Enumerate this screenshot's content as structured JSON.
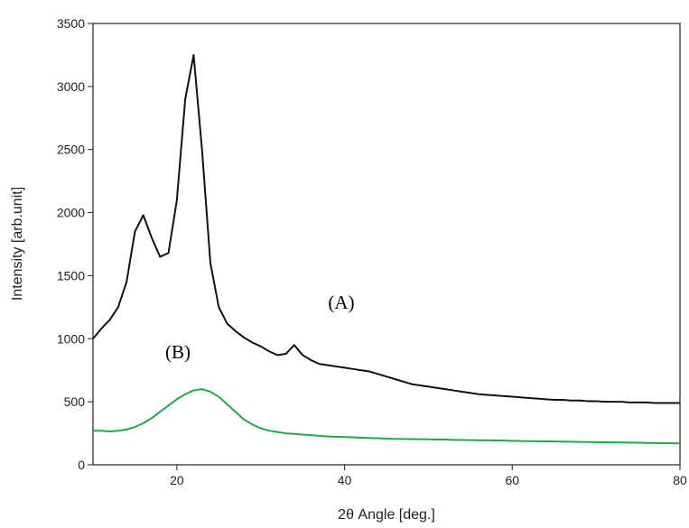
{
  "chart_data": {
    "type": "line",
    "x_label": "2θ Angle [deg.]",
    "y_label": "Intensity [arb.unit]",
    "x": [
      10,
      11,
      12,
      13,
      14,
      15,
      16,
      17,
      18,
      19,
      20,
      21,
      22,
      23,
      24,
      25,
      26,
      27,
      28,
      29,
      30,
      31,
      32,
      33,
      34,
      35,
      36,
      37,
      38,
      39,
      40,
      41,
      42,
      43,
      44,
      45,
      46,
      47,
      48,
      49,
      50,
      51,
      52,
      53,
      54,
      55,
      56,
      57,
      58,
      59,
      60,
      61,
      62,
      63,
      64,
      65,
      66,
      67,
      68,
      69,
      70,
      71,
      72,
      73,
      74,
      75,
      76,
      77,
      78,
      79,
      80
    ],
    "series": [
      {
        "name": "(A)",
        "color": "#111111",
        "values": [
          1000,
          1080,
          1150,
          1250,
          1450,
          1850,
          1980,
          1800,
          1650,
          1680,
          2100,
          2900,
          3250,
          2500,
          1600,
          1250,
          1120,
          1060,
          1010,
          970,
          940,
          900,
          870,
          880,
          950,
          870,
          830,
          800,
          790,
          780,
          770,
          760,
          750,
          740,
          720,
          700,
          680,
          660,
          640,
          630,
          620,
          610,
          600,
          590,
          580,
          570,
          560,
          555,
          550,
          545,
          540,
          535,
          530,
          525,
          520,
          515,
          515,
          510,
          510,
          505,
          505,
          500,
          500,
          500,
          495,
          495,
          495,
          490,
          490,
          490,
          490
        ]
      },
      {
        "name": "(B)",
        "color": "#22a84a",
        "values": [
          270,
          270,
          265,
          270,
          280,
          300,
          330,
          370,
          420,
          470,
          520,
          560,
          590,
          600,
          580,
          540,
          480,
          420,
          360,
          320,
          290,
          270,
          260,
          250,
          245,
          240,
          235,
          230,
          225,
          222,
          220,
          218,
          215,
          213,
          210,
          208,
          206,
          205,
          204,
          203,
          202,
          200,
          200,
          198,
          197,
          196,
          195,
          194,
          193,
          192,
          190,
          189,
          188,
          187,
          186,
          185,
          184,
          183,
          182,
          181,
          180,
          179,
          178,
          177,
          176,
          175,
          174,
          173,
          172,
          171,
          170
        ]
      }
    ],
    "xlim": [
      10,
      80
    ],
    "xticks": [
      20,
      40,
      60,
      80
    ],
    "ylim": [
      0,
      3500
    ],
    "yticks": [
      0,
      500,
      1000,
      1500,
      2000,
      2500,
      3000,
      3500
    ]
  }
}
